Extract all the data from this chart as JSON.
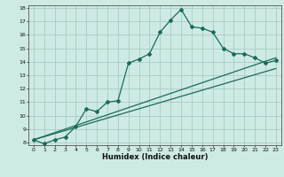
{
  "xlabel": "Humidex (Indice chaleur)",
  "bg_color": "#ceeae4",
  "grid_color": "#aaccc6",
  "line_color": "#1a6b5a",
  "xlim": [
    -0.5,
    23.5
  ],
  "ylim": [
    7.8,
    18.2
  ],
  "xticks": [
    0,
    1,
    2,
    3,
    4,
    5,
    6,
    7,
    8,
    9,
    10,
    11,
    12,
    13,
    14,
    15,
    16,
    17,
    18,
    19,
    20,
    21,
    22,
    23
  ],
  "yticks": [
    8,
    9,
    10,
    11,
    12,
    13,
    14,
    15,
    16,
    17,
    18
  ],
  "curve_x": [
    0,
    1,
    2,
    3,
    4,
    5,
    6,
    7,
    8,
    9,
    10,
    11,
    12,
    13,
    14,
    15,
    16,
    17,
    18,
    19,
    20,
    21,
    22,
    23
  ],
  "curve_y": [
    8.2,
    7.9,
    8.2,
    8.4,
    9.2,
    10.5,
    10.3,
    11.0,
    11.1,
    13.9,
    14.2,
    14.6,
    16.2,
    17.1,
    17.9,
    16.6,
    16.5,
    16.2,
    15.0,
    14.6,
    14.6,
    14.3,
    13.9,
    14.1
  ],
  "line1_x": [
    0,
    23
  ],
  "line1_y": [
    8.2,
    14.3
  ],
  "line2_x": [
    0,
    23
  ],
  "line2_y": [
    8.2,
    13.5
  ]
}
